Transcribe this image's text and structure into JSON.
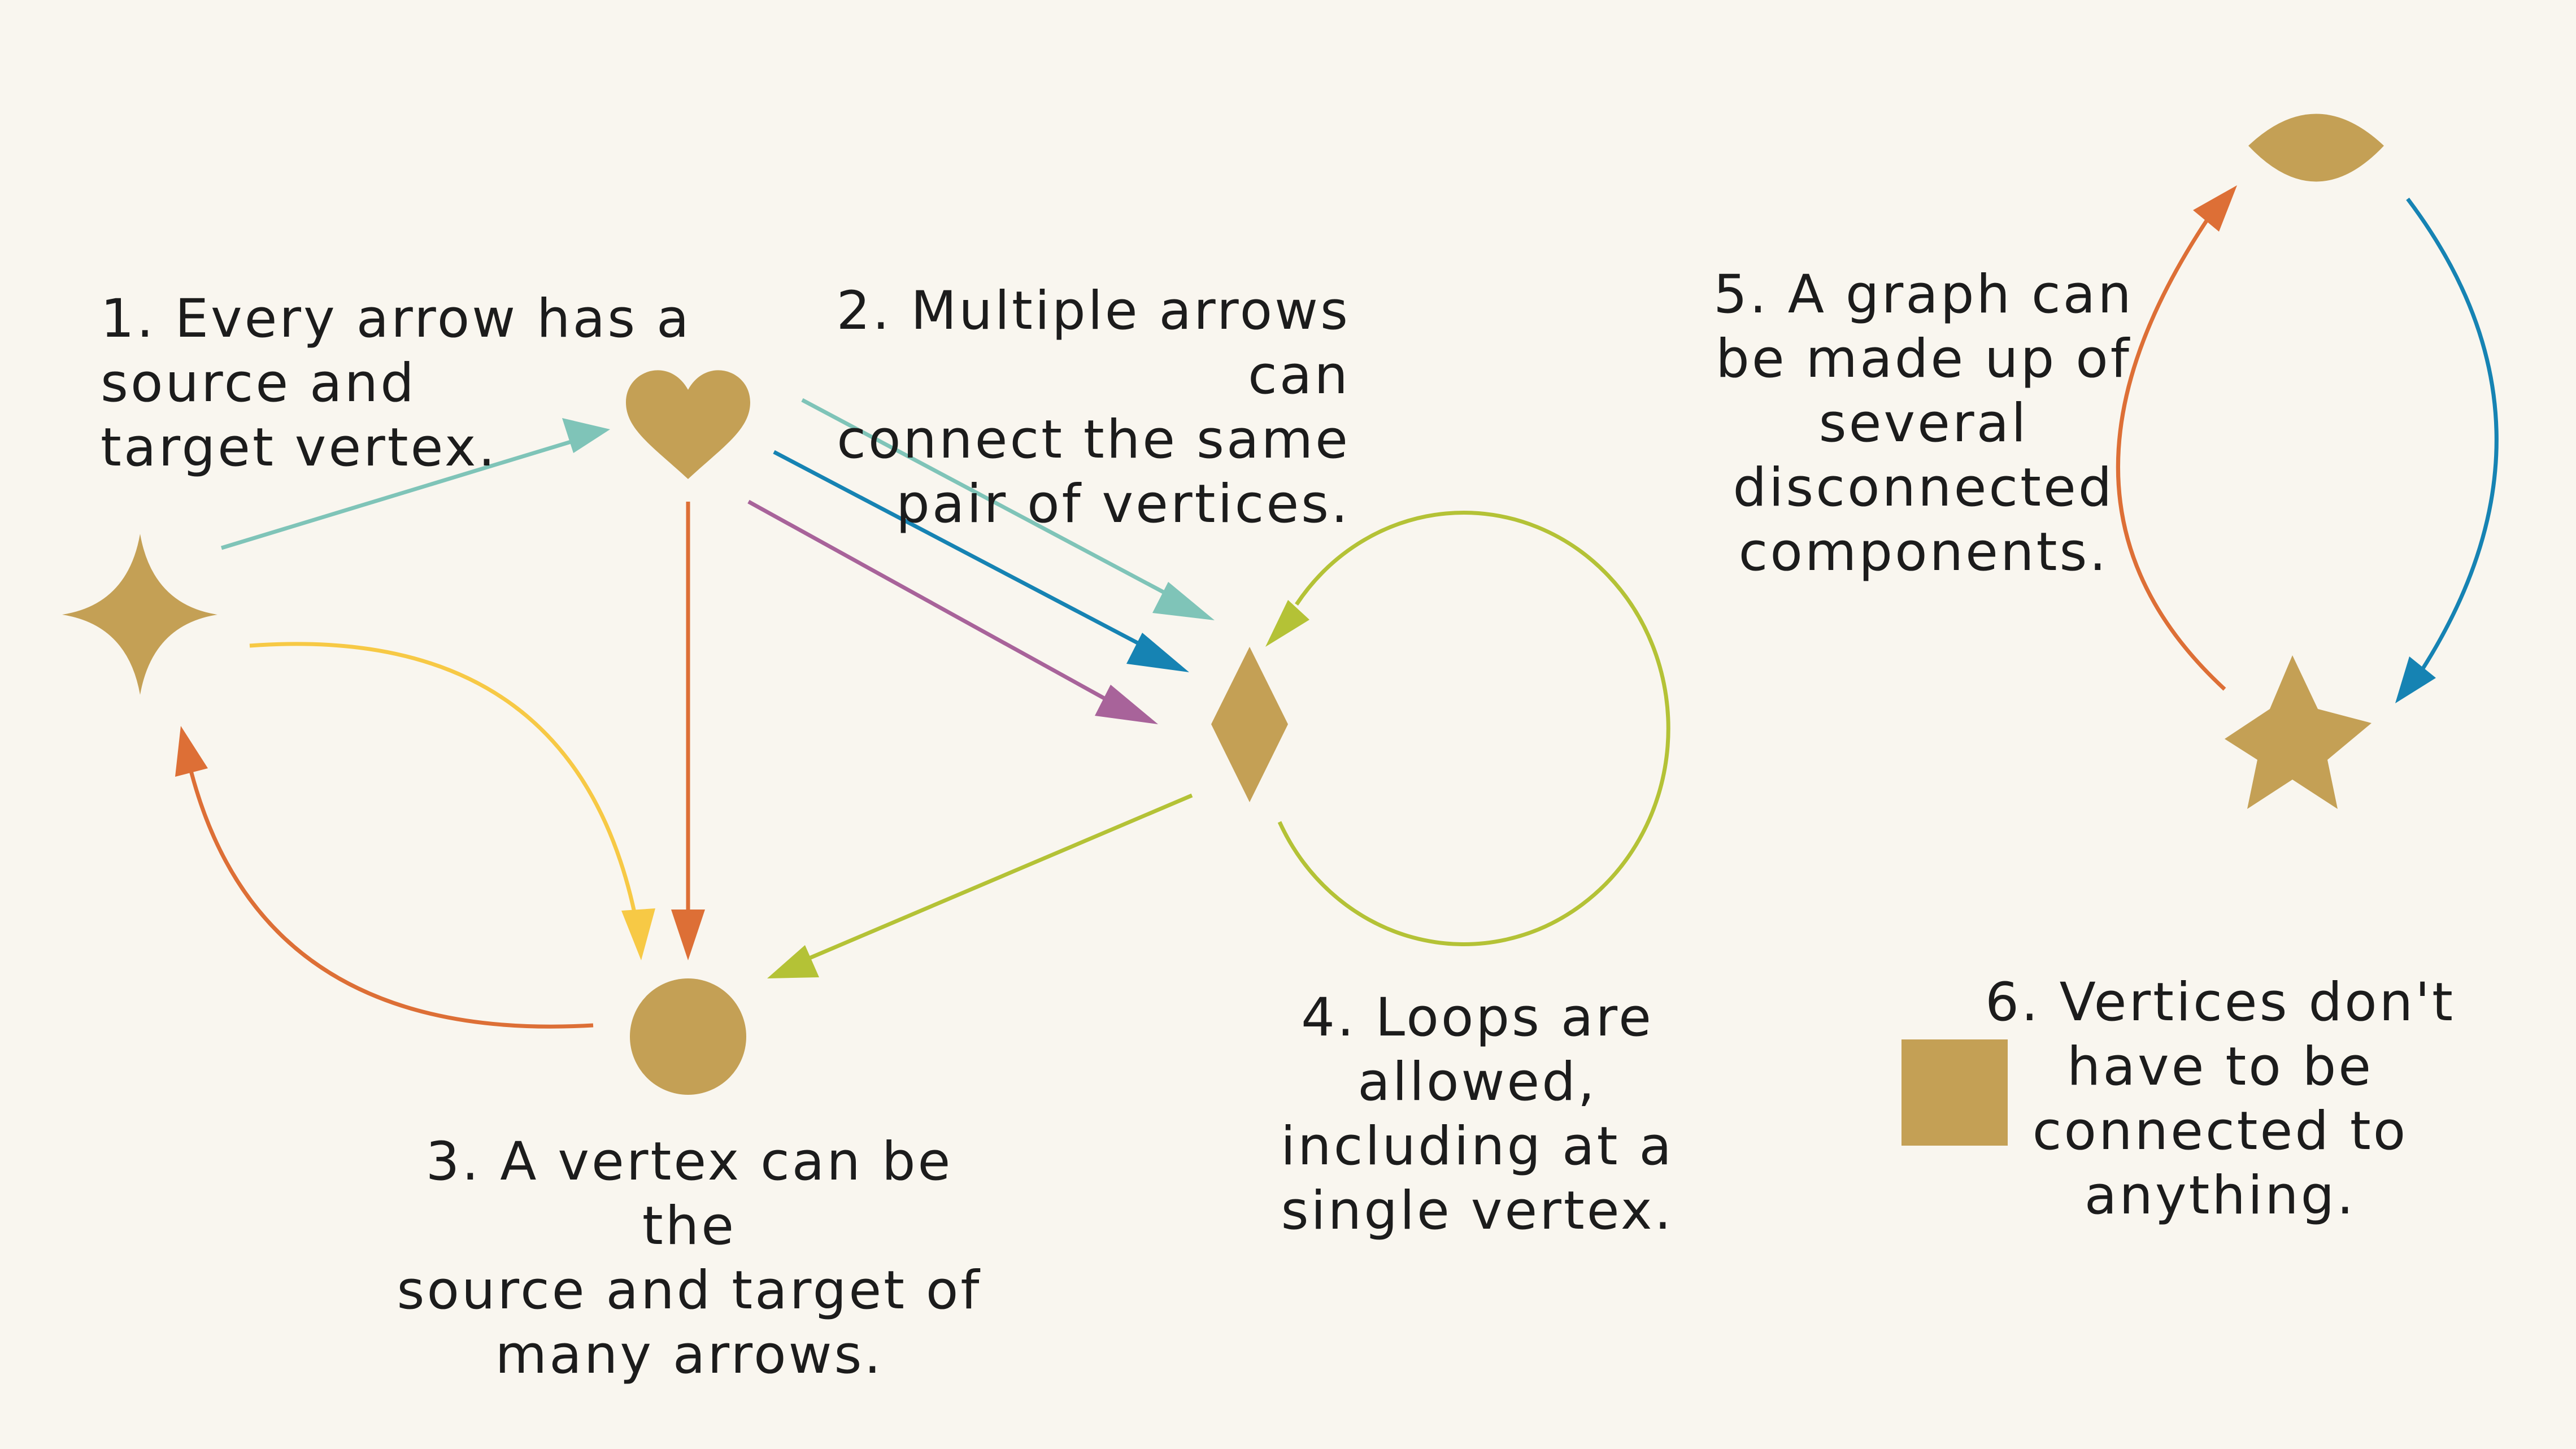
{
  "background_color": "#f9f6ef",
  "vertex_color": "#c4a055",
  "edge_colors": {
    "teal": "#7fc4b8",
    "blue": "#1683b3",
    "purple": "#a8639a",
    "orange": "#dd6f36",
    "yellow": "#f7c945",
    "lime": "#b4c236"
  },
  "vertices": [
    {
      "id": "star4",
      "shape": "four-pointed-star"
    },
    {
      "id": "heart",
      "shape": "heart"
    },
    {
      "id": "diamond",
      "shape": "diamond"
    },
    {
      "id": "circle",
      "shape": "circle"
    },
    {
      "id": "eye",
      "shape": "lens"
    },
    {
      "id": "star5",
      "shape": "five-pointed-star"
    },
    {
      "id": "square",
      "shape": "square"
    }
  ],
  "edges": [
    {
      "source": "star4",
      "target": "heart",
      "color": "teal"
    },
    {
      "source": "heart",
      "target": "diamond",
      "color": "teal"
    },
    {
      "source": "heart",
      "target": "diamond",
      "color": "blue"
    },
    {
      "source": "heart",
      "target": "diamond",
      "color": "purple"
    },
    {
      "source": "heart",
      "target": "circle",
      "color": "orange"
    },
    {
      "source": "star4",
      "target": "circle",
      "color": "yellow"
    },
    {
      "source": "circle",
      "target": "star4",
      "color": "orange"
    },
    {
      "source": "diamond",
      "target": "circle",
      "color": "lime"
    },
    {
      "source": "diamond",
      "target": "diamond",
      "color": "lime"
    },
    {
      "source": "star5",
      "target": "eye",
      "color": "orange"
    },
    {
      "source": "eye",
      "target": "star5",
      "color": "blue"
    }
  ],
  "notes": {
    "note1": "1. Every arrow has a\nsource and\ntarget vertex.",
    "note2": "2. Multiple arrows can\nconnect the same\npair of vertices.",
    "note3": "3. A vertex can be the\nsource and target of\nmany arrows.",
    "note4": "4. Loops are\nallowed,\nincluding at a\nsingle vertex.",
    "note5": "5. A graph can\nbe made up of\nseveral\ndisconnected\ncomponents.",
    "note6": "6. Vertices don't\nhave to be\nconnected to\nanything."
  }
}
